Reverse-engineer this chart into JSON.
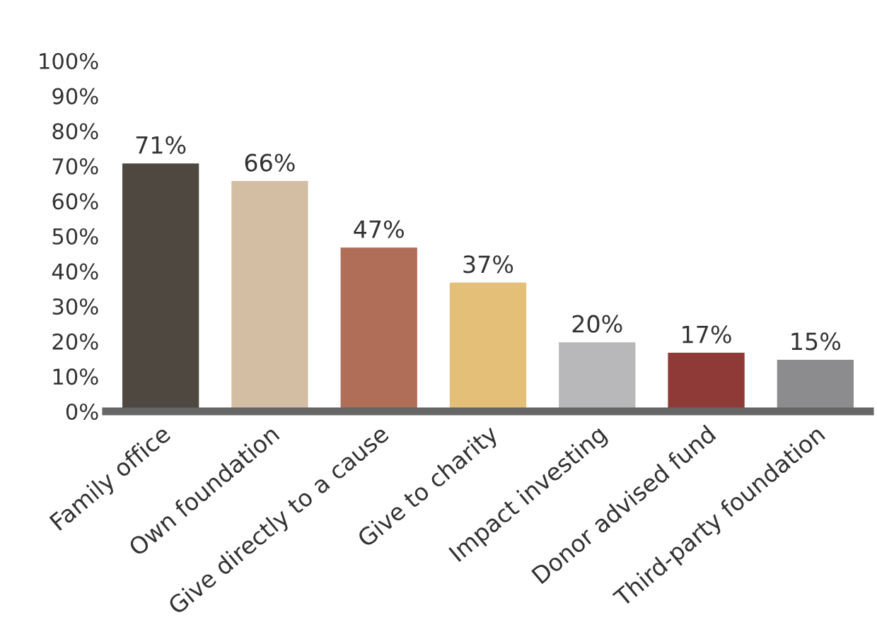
{
  "chart_data": {
    "type": "bar",
    "categories": [
      "Family office",
      "Own foundation",
      "Give directly to a cause",
      "Give to charity",
      "Impact investing",
      "Donor advised fund",
      "Third-party foundation"
    ],
    "values": [
      71,
      66,
      47,
      37,
      20,
      17,
      15
    ],
    "value_labels": [
      "71%",
      "66%",
      "47%",
      "37%",
      "20%",
      "17%",
      "15%"
    ],
    "colors": [
      "#4f4840",
      "#d3bea3",
      "#b06e58",
      "#e3bf78",
      "#b8b8ba",
      "#8f3a36",
      "#8c8c8e"
    ],
    "ylim": [
      0,
      100
    ],
    "yticks": [
      {
        "value": 0,
        "label": "0%"
      },
      {
        "value": 10,
        "label": "10%"
      },
      {
        "value": 20,
        "label": "20%"
      },
      {
        "value": 30,
        "label": "30%"
      },
      {
        "value": 40,
        "label": "40%"
      },
      {
        "value": 50,
        "label": "50%"
      },
      {
        "value": 60,
        "label": "60%"
      },
      {
        "value": 70,
        "label": "70%"
      },
      {
        "value": 80,
        "label": "80%"
      },
      {
        "value": 90,
        "label": "90%"
      },
      {
        "value": 100,
        "label": "100%"
      }
    ],
    "grid": false,
    "legend": false
  }
}
